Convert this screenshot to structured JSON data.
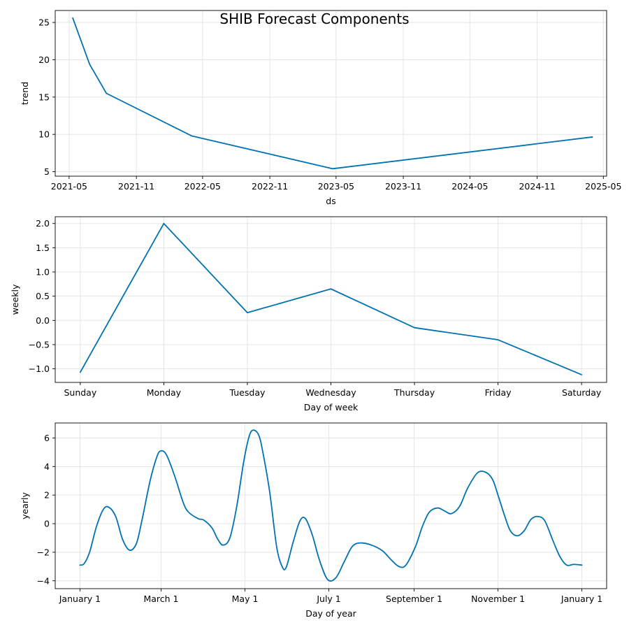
{
  "figure": {
    "title": "SHIB Forecast Components",
    "line_color": "#0072B2",
    "grid_color": "#e5e5e5"
  },
  "chart_data": [
    {
      "type": "line",
      "name": "trend",
      "xlabel": "ds",
      "ylabel": "trend",
      "x_is_date": true,
      "xlim": [
        "2021-03-24",
        "2025-05-10"
      ],
      "ylim": [
        4.4,
        26.6
      ],
      "grid": true,
      "xticks": [
        "2021-05-01",
        "2021-11-01",
        "2022-05-01",
        "2022-11-01",
        "2023-05-01",
        "2023-11-01",
        "2024-05-01",
        "2024-11-01",
        "2025-05-01"
      ],
      "xtick_labels": [
        "2021-05",
        "2021-11",
        "2022-05",
        "2022-11",
        "2023-05",
        "2023-11",
        "2024-05",
        "2024-11",
        "2025-05"
      ],
      "yticks": [
        5,
        10,
        15,
        20,
        25
      ],
      "ytick_labels": [
        "5",
        "10",
        "15",
        "20",
        "25"
      ],
      "x": [
        "2021-05-11",
        "2021-06-26",
        "2021-08-11",
        "2022-04-01",
        "2023-04-22",
        "2025-04-01"
      ],
      "y": [
        25.6,
        19.4,
        15.5,
        9.8,
        5.4,
        9.65
      ]
    },
    {
      "type": "line",
      "name": "weekly",
      "xlabel": "Day of week",
      "ylabel": "weekly",
      "xlim": [
        -0.3,
        6.3
      ],
      "ylim": [
        -1.28,
        2.14
      ],
      "grid": true,
      "categories": [
        "Sunday",
        "Monday",
        "Tuesday",
        "Wednesday",
        "Thursday",
        "Friday",
        "Saturday"
      ],
      "yticks": [
        -1.0,
        -0.5,
        0.0,
        0.5,
        1.0,
        1.5,
        2.0
      ],
      "ytick_labels": [
        "−1.0",
        "−0.5",
        "0.0",
        "0.5",
        "1.0",
        "1.5",
        "2.0"
      ],
      "values": [
        -1.07,
        2.0,
        0.16,
        0.65,
        -0.15,
        -0.4,
        -1.12
      ]
    },
    {
      "type": "line",
      "name": "yearly",
      "xlabel": "Day of year",
      "ylabel": "yearly",
      "xlim": [
        -18,
        383
      ],
      "ylim": [
        -4.55,
        7.05
      ],
      "grid": true,
      "xticks": [
        0,
        59,
        120,
        181,
        243,
        304,
        365
      ],
      "xtick_labels": [
        "January 1",
        "March 1",
        "May 1",
        "July 1",
        "September 1",
        "November 1",
        "January 1"
      ],
      "yticks": [
        -4,
        -2,
        0,
        2,
        4,
        6
      ],
      "ytick_labels": [
        "−4",
        "−2",
        "0",
        "2",
        "4",
        "6"
      ],
      "x": [
        0,
        3,
        7,
        12,
        17,
        21,
        26,
        31,
        36,
        41,
        45,
        51,
        56,
        59,
        63,
        69,
        75,
        79,
        86,
        90,
        96,
        100,
        104,
        109,
        114,
        119,
        123,
        126,
        130,
        133,
        138,
        143,
        147,
        150,
        155,
        160,
        164,
        169,
        174,
        180,
        186,
        192,
        198,
        204,
        212,
        220,
        226,
        232,
        237,
        244,
        249,
        254,
        260,
        265,
        270,
        276,
        282,
        289,
        295,
        300,
        304,
        309,
        313,
        318,
        323,
        328,
        333,
        338,
        344,
        349,
        354,
        359,
        365
      ],
      "y": [
        -2.9,
        -2.8,
        -2.0,
        -0.2,
        1.0,
        1.15,
        0.5,
        -1.1,
        -1.85,
        -1.4,
        0.2,
        3.0,
        4.7,
        5.1,
        4.8,
        3.3,
        1.5,
        0.8,
        0.35,
        0.25,
        -0.3,
        -1.05,
        -1.5,
        -1.0,
        1.2,
        4.3,
        6.1,
        6.55,
        6.2,
        5.0,
        2.2,
        -1.6,
        -3.0,
        -3.05,
        -1.3,
        0.2,
        0.35,
        -0.8,
        -2.5,
        -3.9,
        -3.8,
        -2.7,
        -1.6,
        -1.35,
        -1.5,
        -1.9,
        -2.5,
        -3.0,
        -2.9,
        -1.6,
        -0.2,
        0.8,
        1.1,
        0.9,
        0.7,
        1.2,
        2.5,
        3.55,
        3.6,
        3.1,
        2.0,
        0.5,
        -0.5,
        -0.85,
        -0.5,
        0.3,
        0.5,
        0.2,
        -1.2,
        -2.3,
        -2.9,
        -2.85,
        -2.9
      ]
    }
  ]
}
